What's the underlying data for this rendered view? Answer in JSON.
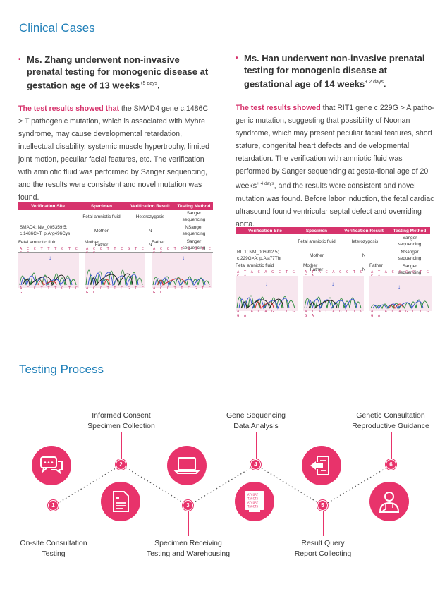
{
  "clinical": {
    "title": "Clinical Cases",
    "case1": {
      "bullet": "•",
      "heading": "Ms. Zhang underwent non-invasive prenatal testing for monogenic disease at gestation age of 13 weeks",
      "sup": "+5 days",
      "heading_end": ".",
      "highlight": "The test results showed that",
      "body": " the SMAD4 gene c.1486C > T pathogenic mutation, which is associated with Myhre syndrome, may cause developmental retardation, intellectual disability, systemic muscle hypertrophy, limited joint motion, peculiar facial features, etc. The verification with amniotic fluid was performed by Sanger sequencing, and the results were consistent and novel mutation was found.",
      "table": {
        "headers": [
          "Verification Site",
          "Specimen",
          "Verification Result",
          "Testing Method"
        ],
        "site": "SMAD4; NM_005359.5; c.1486C>T; p.Arg496Cys",
        "rows": [
          [
            "Fetal amniotic fluid",
            "Heterozygosis",
            "Sanger sequencing"
          ],
          [
            "Mother",
            "N",
            "NSanger sequencing"
          ],
          [
            "Father",
            "N",
            "Sanger sequencing"
          ]
        ]
      },
      "chromatograms": [
        {
          "label": "Fetal amniotic fluid",
          "seq": "A C C T T T G T C G C"
        },
        {
          "label": "Mother",
          "seq": "A C C T T C G T C G C"
        },
        {
          "label": "Father",
          "seq": "A C C T T C G T C G C"
        }
      ]
    },
    "case2": {
      "bullet": "•",
      "heading": "Ms. Han underwent non-invasive prenatal testing for monogenic disease at gestational age of 14 weeks",
      "sup": "+ 2 days",
      "heading_end": ".",
      "highlight": "The test results showed",
      "body_a": " that RIT1 gene c.229G > A patho-genic mutation, suggesting that possibility of Noonan syndrome, which may present peculiar facial features, short stature, congenital heart defects and de velopmental retardation. The verification with amniotic fluid was performed by Sanger sequencing at gesta-tional age of 20 weeks",
      "body_sup": "+ 4 days",
      "body_b": ",   and the results were consistent and novel mutation was found. Before labor induction, the fetal cardiac ultrasound found ventricular septal defect and overriding aorta.",
      "table": {
        "headers": [
          "Verification Site",
          "Specimen",
          "Verification Result",
          "Testing Method"
        ],
        "site": "RIT1; NM_006912.5; c.229G>A; p.Ala77Thr",
        "rows": [
          [
            "Fetal amniotic fluid",
            "Heterozygosis",
            "Sanger sequencing"
          ],
          [
            "Mother",
            "N",
            "NSanger sequencing"
          ],
          [
            "Father",
            "N",
            "Sanger sequencing"
          ]
        ]
      },
      "chromatograms": [
        {
          "label": "Fetal amniotic fluid",
          "seq": "A T A C A G C T G G A"
        },
        {
          "label": "Mother",
          "seq": "A T A C A G C T G G A"
        },
        {
          "label": "Father",
          "seq": "A T A C A G C T G G A"
        }
      ]
    }
  },
  "process": {
    "title": "Testing Process",
    "steps": [
      {
        "num": "1",
        "label1": "On-site Consultation",
        "label2": "Testing",
        "icon": "chat-bubbles-icon"
      },
      {
        "num": "2",
        "label1": "Informed Consent",
        "label2": "Specimen Collection",
        "icon": "consent-form-icon"
      },
      {
        "num": "3",
        "label1": "Specimen Receiving",
        "label2": "Testing and Warehousing",
        "icon": "laptop-icon"
      },
      {
        "num": "4",
        "label1": "Gene Sequencing",
        "label2": "Data Analysis",
        "icon": "sequencer-icon"
      },
      {
        "num": "5",
        "label1": "Result Query",
        "label2": "Report Collecting",
        "icon": "report-arrow-icon"
      },
      {
        "num": "6",
        "label1": "Genetic Consultation",
        "label2": "Reproductive Guidance",
        "icon": "doctor-icon"
      }
    ],
    "sequencer_lines": [
      "ATCGAT",
      "TAGCTA",
      "ATCGAT",
      "TAGCTA"
    ]
  },
  "colors": {
    "accent": "#e8336b",
    "title_blue": "#1f7fb8",
    "highlight": "#d6336c"
  }
}
